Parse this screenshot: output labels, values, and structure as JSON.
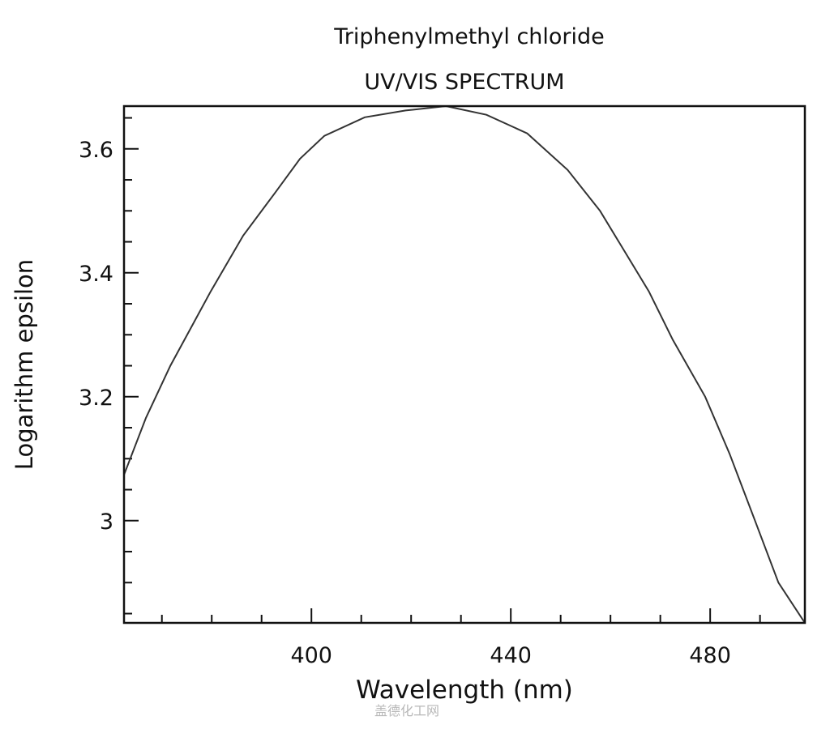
{
  "chart_data": {
    "type": "line",
    "title": "Triphenylmethyl chloride",
    "subtitle": "UV/VIS SPECTRUM",
    "xlabel": "Wavelength (nm)",
    "ylabel": "Logarithm epsilon",
    "xlim": [
      362.4,
      499
    ],
    "ylim": [
      2.835,
      3.669
    ],
    "xticks": [
      400,
      440,
      480
    ],
    "xtick_labels": [
      "400",
      "440",
      "480"
    ],
    "x_minor_step": 10,
    "yticks": [
      3.0,
      3.2,
      3.4,
      3.6
    ],
    "ytick_labels": [
      "3",
      "3.2",
      "3.4",
      "3.6"
    ],
    "y_minor_step": 0.05,
    "grid": false,
    "line_color": "#333333",
    "series": [
      {
        "x": [
          362.4,
          366.8,
          371.7,
          379.8,
          386.3,
          392.8,
          397.7,
          402.6,
          410.7,
          418.9,
          427.0,
          435.1,
          443.3,
          451.4,
          457.9,
          462.8,
          467.7,
          472.5,
          479.0,
          483.9,
          488.8,
          493.7,
          499.0
        ],
        "y": [
          3.074,
          3.166,
          3.25,
          3.37,
          3.46,
          3.53,
          3.584,
          3.621,
          3.651,
          3.662,
          3.669,
          3.655,
          3.625,
          3.566,
          3.5,
          3.435,
          3.37,
          3.292,
          3.2,
          3.108,
          3.004,
          2.9,
          2.835
        ]
      }
    ]
  },
  "watermark": "盖德化工网"
}
